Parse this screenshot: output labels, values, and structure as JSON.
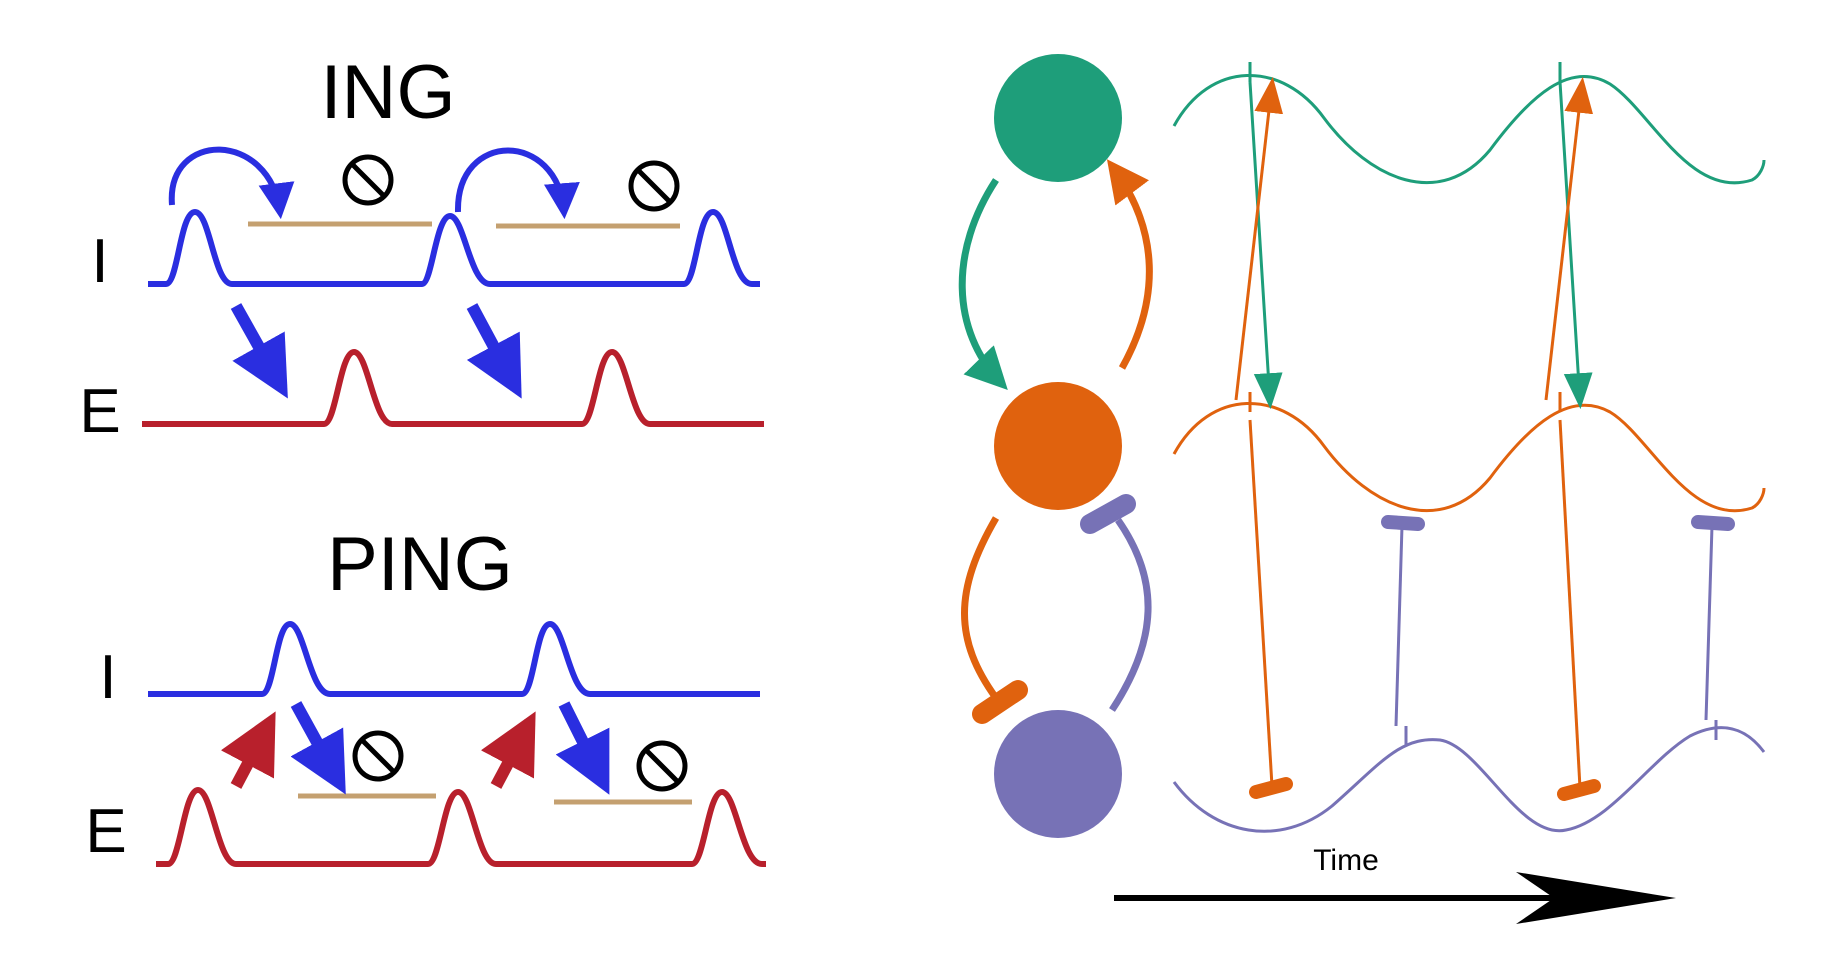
{
  "ing": {
    "title": "ING",
    "labels": {
      "i": "I",
      "e": "E"
    }
  },
  "ping": {
    "title": "PING",
    "labels": {
      "i": "I",
      "e": "E"
    }
  },
  "time_axis": {
    "label": "Time"
  },
  "colors": {
    "inhibitory_trace": "#2a2ee0",
    "excitatory_trace": "#b8202c",
    "suppression_bar": "#c4a070",
    "green_population": "#1e9e7a",
    "orange_population": "#e0620e",
    "purple_population": "#7772b6",
    "arrow_black": "#000000"
  },
  "icons": {
    "suppression": "no-entry-icon",
    "excitation": "arrow-icon",
    "inhibition": "bar-end-icon"
  }
}
